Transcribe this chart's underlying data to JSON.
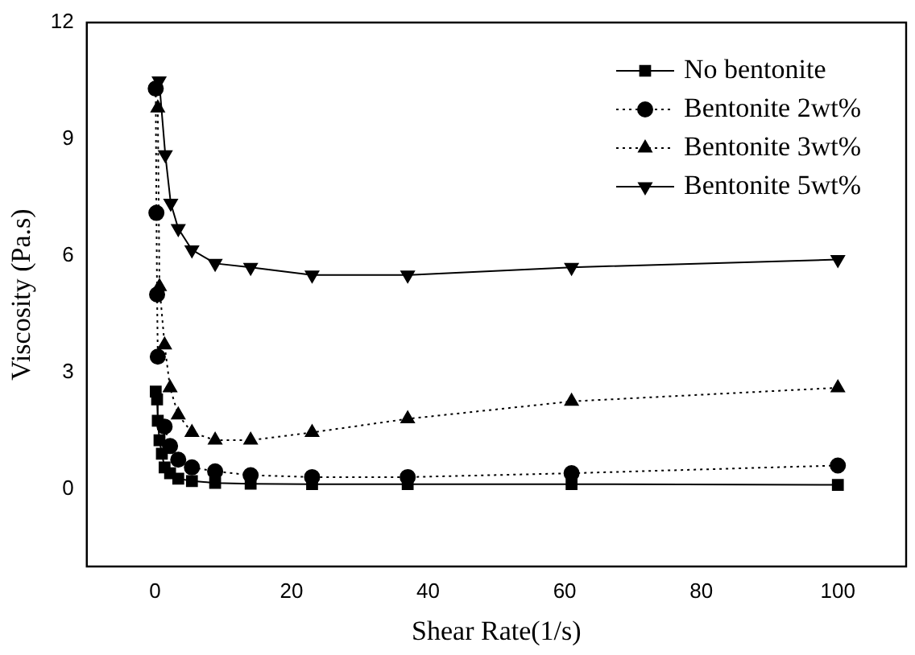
{
  "chart_data": {
    "type": "line",
    "xlabel": "Shear Rate(1/s)",
    "ylabel": "Viscosity (Pa.s)",
    "xlim": [
      -10,
      110
    ],
    "xticks": [
      0,
      20,
      40,
      60,
      80,
      100
    ],
    "ylim": [
      -2,
      12
    ],
    "yticks": [
      0,
      3,
      6,
      9,
      12
    ],
    "grid": false,
    "legend": "top right",
    "series": [
      {
        "name": "No bentonite",
        "color": "#000000",
        "marker": "square",
        "line_style": "solid",
        "x": [
          0.1,
          0.3,
          0.4,
          0.65,
          1.0,
          1.4,
          2.2,
          3.4,
          5.4,
          8.8,
          14,
          23,
          37,
          61,
          100
        ],
        "values": [
          2.5,
          2.3,
          1.75,
          1.25,
          0.9,
          0.55,
          0.4,
          0.26,
          0.2,
          0.15,
          0.13,
          0.12,
          0.12,
          0.12,
          0.1
        ]
      },
      {
        "name": "Bentonite 2wt%",
        "color": "#000000",
        "marker": "circle",
        "line_style": "dotted",
        "x": [
          0.1,
          0.2,
          0.3,
          0.4,
          0.65,
          1.4,
          2.2,
          3.4,
          5.4,
          8.8,
          14,
          23,
          37,
          61,
          100
        ],
        "values": [
          10.3,
          7.1,
          5.0,
          3.4,
          null,
          1.6,
          1.1,
          0.75,
          0.55,
          0.45,
          0.35,
          0.3,
          0.3,
          0.4,
          0.6
        ]
      },
      {
        "name": "Bentonite 3wt%",
        "color": "#000000",
        "marker": "triangle",
        "line_style": "dotted",
        "x": [
          0.4,
          0.65,
          1.4,
          2.2,
          3.4,
          5.4,
          8.8,
          14,
          23,
          37,
          61,
          100
        ],
        "values": [
          9.8,
          5.2,
          3.7,
          2.6,
          1.9,
          1.45,
          1.25,
          1.25,
          1.45,
          1.8,
          2.25,
          2.6
        ]
      },
      {
        "name": "Bentonite 5wt%",
        "color": "#000000",
        "marker": "triangle-down",
        "line_style": "solid",
        "x": [
          0.6,
          1.5,
          2.3,
          3.4,
          5.4,
          8.8,
          14,
          23,
          37,
          61,
          100
        ],
        "values": [
          10.5,
          8.6,
          7.35,
          6.7,
          6.15,
          5.8,
          5.7,
          5.5,
          5.5,
          5.7,
          5.9
        ]
      }
    ]
  }
}
